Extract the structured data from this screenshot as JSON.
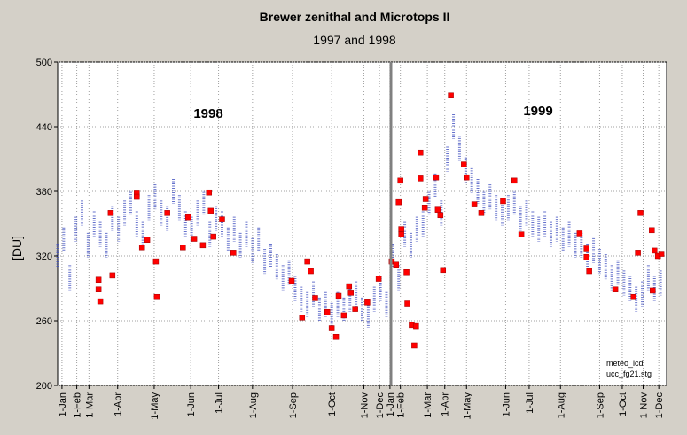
{
  "chart_data": {
    "type": "scatter",
    "title": "Brewer zenithal and Microtops II",
    "subtitle": "1997 and 1998",
    "y_label": "[DU]",
    "annotations": [
      "1998",
      "1999",
      "meteo_lcd",
      "ucc_fg21.stg"
    ],
    "xlim": [
      0,
      700
    ],
    "ylim": [
      200,
      500
    ],
    "yticks": [
      200,
      260,
      320,
      380,
      440,
      500
    ],
    "xticks": [
      {
        "value": 5,
        "label": "1-Jan"
      },
      {
        "value": 22,
        "label": "1-Feb"
      },
      {
        "value": 36,
        "label": "1-Mar"
      },
      {
        "value": 69,
        "label": "1-Apr"
      },
      {
        "value": 111,
        "label": "1-May"
      },
      {
        "value": 153,
        "label": "1-Jun"
      },
      {
        "value": 185,
        "label": "1-Jul"
      },
      {
        "value": 224,
        "label": "1-Aug"
      },
      {
        "value": 270,
        "label": "1-Sep"
      },
      {
        "value": 315,
        "label": "1-Oct"
      },
      {
        "value": 352,
        "label": "1-Nov"
      },
      {
        "value": 370,
        "label": "1-Dec"
      },
      {
        "value": 382,
        "label": "1-Jan"
      },
      {
        "value": 394,
        "label": "1-Feb"
      },
      {
        "value": 425,
        "label": "1-Mar"
      },
      {
        "value": 445,
        "label": "1-Apr"
      },
      {
        "value": 470,
        "label": "1-May"
      },
      {
        "value": 515,
        "label": "1-Jun"
      },
      {
        "value": 542,
        "label": "1-Jul"
      },
      {
        "value": 578,
        "label": "1-Aug"
      },
      {
        "value": 623,
        "label": "1-Sep"
      },
      {
        "value": 649,
        "label": "1-Oct"
      },
      {
        "value": 673,
        "label": "1-Nov"
      },
      {
        "value": 691,
        "label": "1-Dec"
      }
    ],
    "grid": true,
    "series": [
      {
        "color": "#4050c0",
        "marker": "dash",
        "x": [
          0,
          7,
          14,
          21,
          28,
          35,
          42,
          49,
          56,
          63,
          70,
          77,
          84,
          91,
          98,
          105,
          112,
          119,
          126,
          133,
          140,
          147,
          154,
          161,
          168,
          175,
          182,
          189,
          196,
          203,
          210,
          217,
          224,
          231,
          238,
          245,
          252,
          259,
          266,
          273,
          280,
          287,
          294,
          301,
          308,
          315,
          322,
          329,
          336,
          343,
          350,
          357,
          364,
          371,
          378,
          385,
          392,
          399,
          406,
          413,
          420,
          427,
          434,
          441,
          448,
          455,
          462,
          469,
          476,
          483,
          490,
          497,
          504,
          511,
          518,
          525,
          532,
          539,
          546,
          553,
          560,
          567,
          574,
          581,
          588,
          595,
          602,
          609,
          616,
          623,
          630,
          637,
          644,
          651,
          658,
          665,
          672,
          679,
          686,
          693
        ],
        "values": [
          320,
          335,
          300,
          345,
          360,
          330,
          350,
          340,
          330,
          355,
          345,
          360,
          370,
          350,
          340,
          365,
          375,
          360,
          355,
          380,
          365,
          350,
          345,
          360,
          370,
          340,
          355,
          350,
          335,
          345,
          330,
          340,
          325,
          335,
          315,
          320,
          310,
          300,
          305,
          290,
          280,
          275,
          285,
          270,
          275,
          265,
          275,
          270,
          280,
          285,
          270,
          265,
          280,
          290,
          275,
          320,
          300,
          340,
          330,
          345,
          350,
          370,
          385,
          360,
          410,
          440,
          420,
          400,
          390,
          380,
          370,
          375,
          365,
          360,
          365,
          370,
          355,
          360,
          350,
          345,
          350,
          340,
          345,
          335,
          340,
          330,
          330,
          320,
          325,
          315,
          310,
          300,
          305,
          295,
          290,
          280,
          285,
          300,
          290,
          295
        ]
      },
      {
        "color": "#ff0000",
        "marker": "square",
        "x": [
          47,
          47,
          49,
          61,
          63,
          91,
          91,
          97,
          103,
          113,
          114,
          126,
          144,
          150,
          157,
          167,
          174,
          176,
          179,
          189,
          202,
          269,
          281,
          287,
          291,
          296,
          310,
          315,
          320,
          323,
          329,
          335,
          337,
          342,
          356,
          369,
          384,
          389,
          392,
          394,
          395,
          395,
          401,
          402,
          407,
          410,
          412,
          417,
          417,
          422,
          423,
          435,
          437,
          440,
          443,
          452,
          467,
          470,
          479,
          487,
          512,
          525,
          533,
          600,
          608,
          608,
          611,
          641,
          662,
          667,
          670,
          683,
          686,
          684,
          690,
          694
        ],
        "values": [
          298,
          289,
          278,
          360,
          302,
          378,
          375,
          328,
          335,
          315,
          282,
          360,
          328,
          356,
          336,
          330,
          379,
          362,
          338,
          354,
          323,
          297,
          263,
          315,
          306,
          281,
          268,
          253,
          245,
          283,
          265,
          292,
          286,
          271,
          277,
          299,
          315,
          312,
          370,
          390,
          345,
          340,
          305,
          276,
          256,
          237,
          255,
          416,
          392,
          365,
          373,
          393,
          363,
          358,
          307,
          469,
          405,
          393,
          368,
          360,
          371,
          390,
          340,
          341,
          327,
          319,
          306,
          289,
          282,
          323,
          360,
          344,
          325,
          288,
          320,
          322
        ]
      }
    ]
  }
}
